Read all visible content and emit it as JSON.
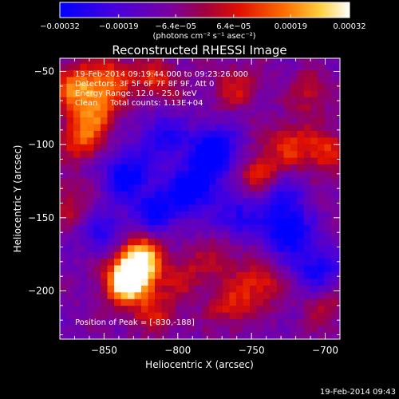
{
  "chart_data": {
    "type": "heatmap",
    "title": "Reconstructed RHESSI Image",
    "xlabel": "Heliocentric X (arcsec)",
    "ylabel": "Heliocentric Y (arcsec)",
    "xlim": [
      -880,
      -690
    ],
    "ylim": [
      -233,
      -41
    ],
    "x_ticks": [
      -850,
      -800,
      -750,
      -700
    ],
    "x_tick_labels": [
      "−850",
      "−800",
      "−750",
      "−700"
    ],
    "y_ticks": [
      -50,
      -100,
      -150,
      -200
    ],
    "y_tick_labels": [
      "−50",
      "−100",
      "−150",
      "−200"
    ],
    "colorbar": {
      "ticks": [
        -0.00032,
        -0.00019,
        -6.4e-05,
        6.4e-05,
        0.00019,
        0.00032
      ],
      "tick_labels": [
        "−0.00032",
        "−0.00019",
        "−6.4e−05",
        "6.4e−05",
        "0.00019",
        "0.00032"
      ],
      "units_label": "(photons cm⁻² s⁻¹ asec⁻²)",
      "range": [
        -0.00032,
        0.00032
      ],
      "colors": [
        "#0000ff",
        "#5a00d6",
        "#7a00a0",
        "#c00000",
        "#ff5000",
        "#ffb000",
        "#ffff80",
        "#ffffff"
      ]
    },
    "annotations": [
      "19-Feb-2014 09:19:44.000 to 09:23:26.000",
      "Detectors: 3F 5F 6F 7F 8F 9F, Att 0",
      "Energy Range: 12.0 - 25.0 keV",
      "Clean     Total counts: 1.13E+04"
    ],
    "peak_label": "Position of Peak = [-830,-188]",
    "peak_position": [
      -830,
      -188
    ],
    "hot_regions": [
      {
        "x": -830,
        "y": -188,
        "level": 1.0
      },
      {
        "x": -835,
        "y": -195,
        "level": 0.9
      },
      {
        "x": -825,
        "y": -175,
        "level": 0.85
      },
      {
        "x": -870,
        "y": -60,
        "level": 0.8
      },
      {
        "x": -855,
        "y": -75,
        "level": 0.7
      },
      {
        "x": -865,
        "y": -95,
        "level": 0.75
      },
      {
        "x": -845,
        "y": -55,
        "level": 0.65
      },
      {
        "x": -815,
        "y": -55,
        "level": 0.55
      },
      {
        "x": -745,
        "y": -120,
        "level": 0.6
      },
      {
        "x": -725,
        "y": -100,
        "level": 0.55
      },
      {
        "x": -700,
        "y": -105,
        "level": 0.6
      },
      {
        "x": -760,
        "y": -60,
        "level": 0.45
      },
      {
        "x": -765,
        "y": -210,
        "level": 0.5
      },
      {
        "x": -745,
        "y": -195,
        "level": 0.55
      },
      {
        "x": -815,
        "y": -215,
        "level": 0.45
      },
      {
        "x": -795,
        "y": -190,
        "level": 0.4
      },
      {
        "x": -710,
        "y": -65,
        "level": 0.4
      },
      {
        "x": -770,
        "y": -175,
        "level": 0.35
      },
      {
        "x": -875,
        "y": -140,
        "level": 0.4
      },
      {
        "x": -700,
        "y": -210,
        "level": 0.35
      }
    ],
    "cold_regions": [
      {
        "x": -775,
        "y": -105,
        "level": -1.0
      },
      {
        "x": -790,
        "y": -130,
        "level": -0.85
      },
      {
        "x": -835,
        "y": -120,
        "level": -0.75
      },
      {
        "x": -815,
        "y": -145,
        "level": -0.7
      },
      {
        "x": -725,
        "y": -160,
        "level": -0.8
      },
      {
        "x": -705,
        "y": -185,
        "level": -0.65
      },
      {
        "x": -810,
        "y": -95,
        "level": -0.6
      },
      {
        "x": -760,
        "y": -150,
        "level": -0.55
      },
      {
        "x": -850,
        "y": -160,
        "level": -0.5
      },
      {
        "x": -730,
        "y": -135,
        "level": -0.5
      }
    ]
  },
  "footer_timestamp": "19-Feb-2014 09:43"
}
